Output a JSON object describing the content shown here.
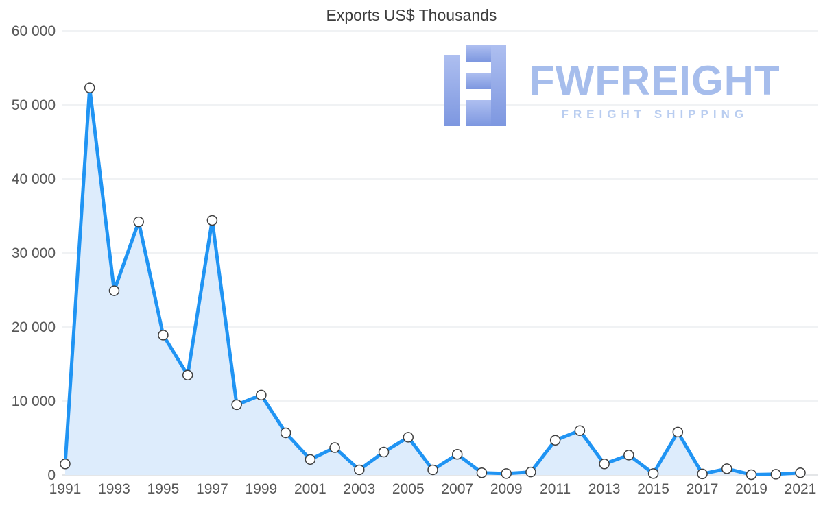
{
  "page": {
    "title": "Exports US$ Thousands"
  },
  "chart_data": {
    "type": "area",
    "title": "Exports US$ Thousands",
    "x": [
      1991,
      1992,
      1993,
      1994,
      1995,
      1996,
      1997,
      1998,
      1999,
      2000,
      2001,
      2002,
      2003,
      2004,
      2005,
      2006,
      2007,
      2008,
      2009,
      2010,
      2011,
      2012,
      2013,
      2014,
      2015,
      2016,
      2017,
      2018,
      2019,
      2020,
      2021
    ],
    "values": [
      1500,
      52300,
      24900,
      34200,
      18900,
      13500,
      34400,
      9500,
      10800,
      5700,
      2100,
      3700,
      700,
      3100,
      5100,
      700,
      2800,
      300,
      200,
      400,
      4700,
      6000,
      1500,
      2700,
      200,
      5800,
      150,
      850,
      50,
      100,
      300
    ],
    "ylim": [
      0,
      60000
    ],
    "yticks": [
      {
        "value": 0,
        "label": "0"
      },
      {
        "value": 10000,
        "label": "10 000"
      },
      {
        "value": 20000,
        "label": "20 000"
      },
      {
        "value": 30000,
        "label": "30 000"
      },
      {
        "value": 40000,
        "label": "40 000"
      },
      {
        "value": 50000,
        "label": "50 000"
      },
      {
        "value": 60000,
        "label": "60 000"
      }
    ],
    "xticks": [
      1991,
      1993,
      1995,
      1997,
      1999,
      2001,
      2003,
      2005,
      2007,
      2009,
      2011,
      2013,
      2015,
      2017,
      2019,
      2021
    ],
    "grid": true,
    "legend": "none",
    "line_color": "#2094f3",
    "fill_color": "#ddecfc",
    "marker_fill": "#ffffff",
    "marker_stroke": "#3f3f3f",
    "grid_color": "#e2e5e8",
    "axis_color": "#c9cdd1",
    "tick_color": "#575757"
  },
  "watermark": {
    "brand": "FWFREIGHT",
    "tagline": "FREIGHT SHIPPING",
    "brand_color": "#a6bdec",
    "tagline_color": "#b9cdf0",
    "logo_color_top": "#aebff0",
    "logo_color_bottom": "#7d97e0"
  }
}
